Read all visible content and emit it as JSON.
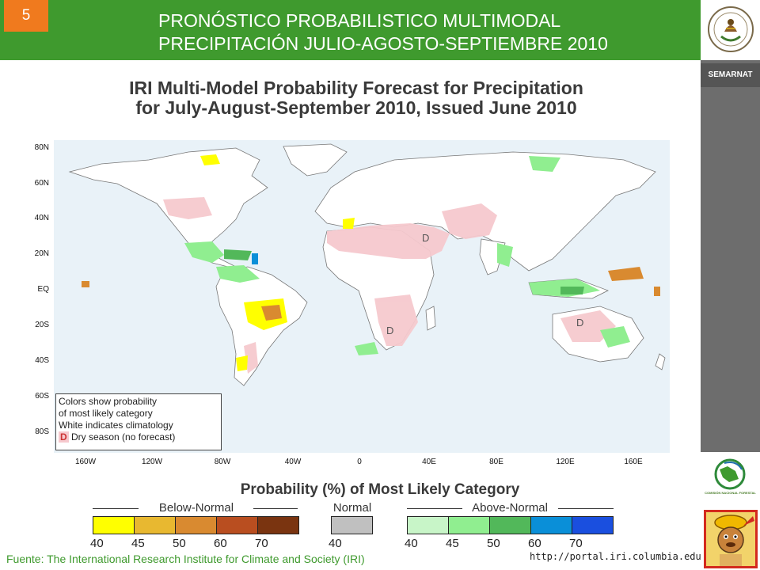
{
  "slide_number": "5",
  "header": {
    "title_line1": "PRONÓSTICO PROBABILISTICO MULTIMODAL",
    "title_line2": "PRECIPITACIÓN JULIO-AGOSTO-SEPTIEMBRE 2010"
  },
  "sidebar": {
    "agency_label": "SEMARNAT",
    "conafor_label": "COMISIÓN NACIONAL FORESTAL"
  },
  "map": {
    "title_line1": "IRI Multi-Model Probability Forecast for Precipitation",
    "title_line2": "for July-August-September 2010, Issued June 2010",
    "lat_labels": [
      "80N",
      "60N",
      "40N",
      "20N",
      "EQ",
      "20S",
      "40S",
      "60S",
      "80S"
    ],
    "lon_labels": [
      "160W",
      "120W",
      "80W",
      "40W",
      "0",
      "40E",
      "80E",
      "120E",
      "160E"
    ],
    "dry_marker": "D",
    "legend": {
      "line1": "Colors show probability",
      "line2": "of most likely category",
      "line3": "White indicates climatology",
      "line4_marker": "D",
      "line4_text": "Dry season (no forecast)"
    }
  },
  "scale": {
    "title": "Probability (%) of Most Likely Category",
    "below_label": "Below-Normal",
    "normal_label": "Normal",
    "above_label": "Above-Normal",
    "below_values": [
      "40",
      "45",
      "50",
      "60",
      "70"
    ],
    "normal_values": [
      "40"
    ],
    "above_values": [
      "40",
      "45",
      "50",
      "60",
      "70"
    ],
    "below_colors": [
      "#ffff00",
      "#e8b830",
      "#d98a30",
      "#b94e20",
      "#7a3410"
    ],
    "normal_colors": [
      "#c0c0c0"
    ],
    "above_colors": [
      "#c8f5c8",
      "#90ee90",
      "#52b85a",
      "#0a8fd8",
      "#1a4fdf"
    ]
  },
  "footer": {
    "source": "Fuente: The International Research Institute for Climate and Society (IRI)",
    "url": "http://portal.iri.columbia.edu"
  }
}
